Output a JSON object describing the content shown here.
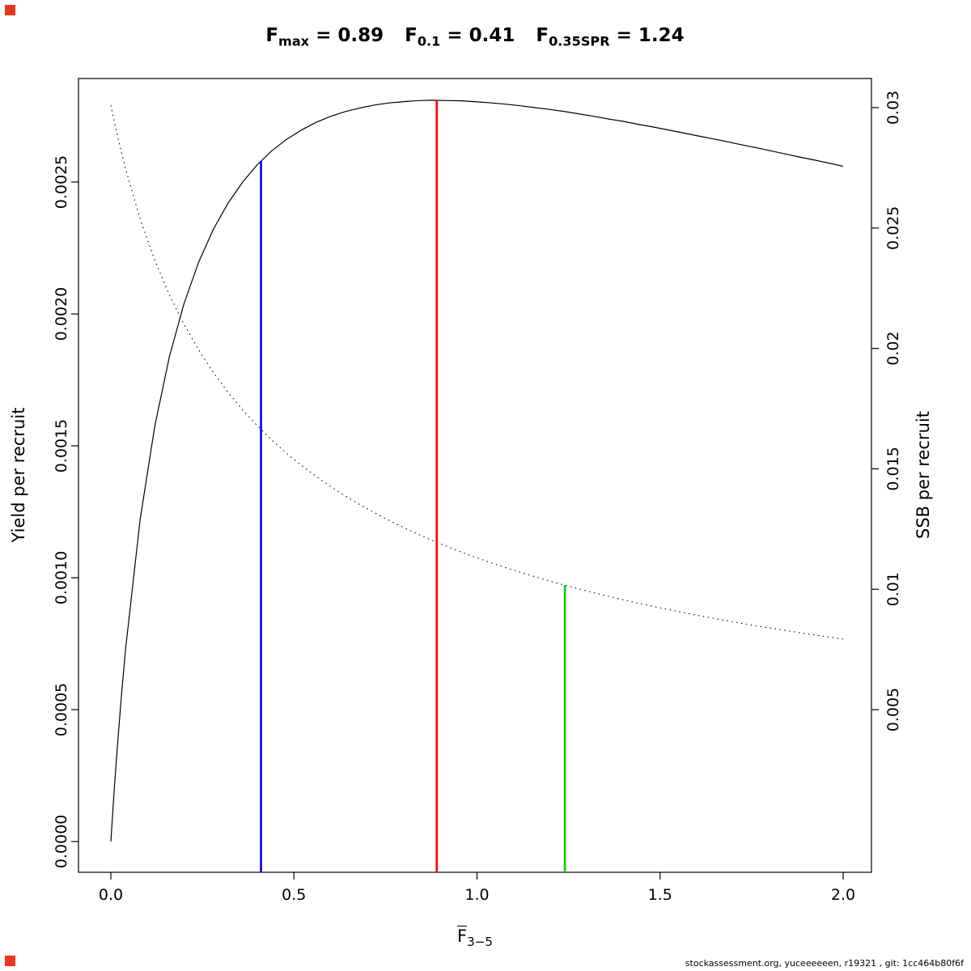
{
  "title": {
    "refs": [
      {
        "base": "F",
        "sub": "max",
        "value": "0.89"
      },
      {
        "base": "F",
        "sub": "0.1",
        "value": "0.41"
      },
      {
        "base": "F",
        "sub": "0.35SPR",
        "value": "1.24"
      }
    ],
    "equals": " = "
  },
  "footer": "stockassessment.org, yuceeeeeen, r19321 , git: 1cc464b80f6f",
  "corner_marker_color": "#e6371e",
  "chart_data": {
    "type": "line",
    "title": "Fmax = 0.89   F0.1 = 0.41   F0.35SPR = 1.24",
    "x_label": {
      "base": "F",
      "overbar": true,
      "sub": "3−5"
    },
    "grid": false,
    "legend": "none",
    "xlim": [
      -0.0884,
      2.0773
    ],
    "ylim_left": [
      -0.0001166,
      0.0028926
    ],
    "ylim_right": [
      -0.001754,
      0.03121
    ],
    "x_axis": {
      "tick_values": [
        0,
        0.5,
        1,
        1.5,
        2
      ],
      "tick_labels": [
        "0.0",
        "0.5",
        "1.0",
        "1.5",
        "2.0"
      ]
    },
    "left_axis": {
      "label": "Yield per recruit",
      "tick_values": [
        0,
        0.0005,
        0.001,
        0.0015,
        0.002,
        0.0025
      ],
      "tick_labels": [
        "0.0000",
        "0.0005",
        "0.0010",
        "0.0015",
        "0.0020",
        "0.0025"
      ]
    },
    "right_axis": {
      "label": "SSB per recruit",
      "tick_values": [
        0.005,
        0.01,
        0.015,
        0.02,
        0.025,
        0.03
      ],
      "tick_labels": [
        "0.005",
        "0.01",
        "0.015",
        "0.02",
        "0.025",
        "0.03"
      ]
    },
    "x": [
      0,
      0.01,
      0.02,
      0.03,
      0.04,
      0.08,
      0.12,
      0.16,
      0.2,
      0.24,
      0.28,
      0.32,
      0.36,
      0.4,
      0.44,
      0.48,
      0.52,
      0.56,
      0.6,
      0.64,
      0.68,
      0.72,
      0.76,
      0.8,
      0.84,
      0.88,
      0.92,
      0.96,
      1.0,
      1.04,
      1.08,
      1.12,
      1.16,
      1.2,
      1.24,
      1.28,
      1.32,
      1.36,
      1.4,
      1.44,
      1.48,
      1.52,
      1.56,
      1.6,
      1.64,
      1.68,
      1.72,
      1.76,
      1.8,
      1.84,
      1.88,
      1.92,
      1.96,
      2.0
    ],
    "series": [
      {
        "id": "yield-per-recruit",
        "name": "Yield per recruit",
        "axis": "left",
        "style": "solid",
        "color": "#000000",
        "width": 1.2,
        "values": [
          0.0,
          0.000212,
          0.000401,
          0.000572,
          0.000727,
          0.001221,
          0.001575,
          0.001839,
          0.00204,
          0.002197,
          0.002321,
          0.00242,
          0.0025,
          0.002566,
          0.002619,
          0.002662,
          0.002697,
          0.002726,
          0.002749,
          0.002767,
          0.002781,
          0.002792,
          0.0028,
          0.002805,
          0.002809,
          0.00281,
          0.002809,
          0.002808,
          0.002804,
          0.0028,
          0.002795,
          0.002789,
          0.002782,
          0.002775,
          0.002767,
          0.002758,
          0.002749,
          0.002739,
          0.00273,
          0.002719,
          0.002709,
          0.002698,
          0.002687,
          0.002676,
          0.002665,
          0.002654,
          0.002642,
          0.002631,
          0.002619,
          0.002607,
          0.002595,
          0.002584,
          0.002572,
          0.00256
        ]
      },
      {
        "id": "ssb-per-recruit",
        "name": "SSB per recruit",
        "axis": "right",
        "style": "dotted",
        "color": "#000000",
        "width": 1.1,
        "values": [
          0.0301,
          0.02938,
          0.028705,
          0.028069,
          0.02747,
          0.025374,
          0.023658,
          0.022219,
          0.020993,
          0.019932,
          0.019002,
          0.01818,
          0.017446,
          0.016787,
          0.01619,
          0.015646,
          0.015148,
          0.014691,
          0.014269,
          0.013877,
          0.013513,
          0.013174,
          0.012856,
          0.012557,
          0.012277,
          0.012013,
          0.011763,
          0.011527,
          0.011303,
          0.01109,
          0.010888,
          0.010695,
          0.010511,
          0.010335,
          0.010167,
          0.010006,
          0.009851,
          0.009703,
          0.00956,
          0.009423,
          0.009292,
          0.009165,
          0.009042,
          0.008924,
          0.00881,
          0.008699,
          0.008592,
          0.008489,
          0.008389,
          0.008292,
          0.008198,
          0.008106,
          0.008018,
          0.007932
        ]
      }
    ],
    "ref_lines": [
      {
        "id": "f01",
        "label": "F0.1 = 0.41",
        "x": 0.41,
        "color": "#0000ff",
        "top_axis": "left",
        "top_value": 0.00258
      },
      {
        "id": "fmax",
        "label": "Fmax = 0.89",
        "x": 0.89,
        "color": "#ff0000",
        "top_axis": "left",
        "top_value": 0.00281
      },
      {
        "id": "f035spr",
        "label": "F0.35SPR = 1.24",
        "x": 1.24,
        "color": "#00cd00",
        "top_axis": "right",
        "top_value": 0.010167
      }
    ]
  }
}
